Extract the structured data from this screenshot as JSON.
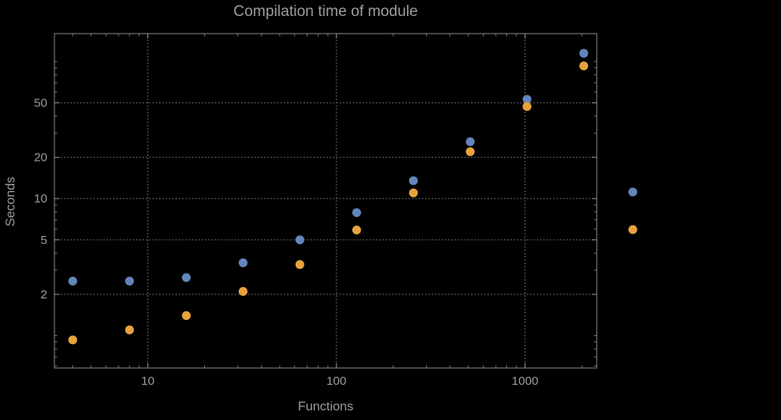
{
  "chart_data": {
    "type": "scatter",
    "title": "Compilation time of module",
    "xlabel": "Functions",
    "ylabel": "Seconds",
    "x_scale": "log",
    "y_scale": "log",
    "xlim": [
      3.2,
      2400
    ],
    "ylim": [
      0.58,
      160
    ],
    "grid": true,
    "legend_position": "right",
    "x": [
      4,
      8,
      16,
      32,
      64,
      128,
      256,
      512,
      1024,
      2048
    ],
    "series": [
      {
        "name": "blue",
        "color": "#6286bb",
        "values": [
          2.5,
          2.5,
          2.65,
          3.4,
          5.0,
          7.9,
          13.5,
          26,
          53,
          115
        ]
      },
      {
        "name": "orange",
        "color": "#e8a33d",
        "values": [
          0.93,
          1.1,
          1.4,
          2.1,
          3.3,
          5.9,
          11,
          22,
          47,
          93
        ]
      }
    ],
    "x_ticks": [
      {
        "value": 10,
        "label": "10"
      },
      {
        "value": 100,
        "label": "100"
      },
      {
        "value": 1000,
        "label": "1000"
      }
    ],
    "y_ticks": [
      {
        "value": 2,
        "label": "2"
      },
      {
        "value": 5,
        "label": "5"
      },
      {
        "value": 10,
        "label": "10"
      },
      {
        "value": 20,
        "label": "20"
      },
      {
        "value": 50,
        "label": "50"
      }
    ]
  },
  "legend": {
    "markers": [
      {
        "series": "blue",
        "color": "#6286bb"
      },
      {
        "series": "orange",
        "color": "#e8a33d"
      }
    ]
  },
  "colors": {
    "background": "#000000",
    "frame": "#8a8a8a",
    "grid": "#5f5f5f",
    "text": "#9c9c9c",
    "series_blue": "#6286bb",
    "series_orange": "#e8a33d"
  }
}
